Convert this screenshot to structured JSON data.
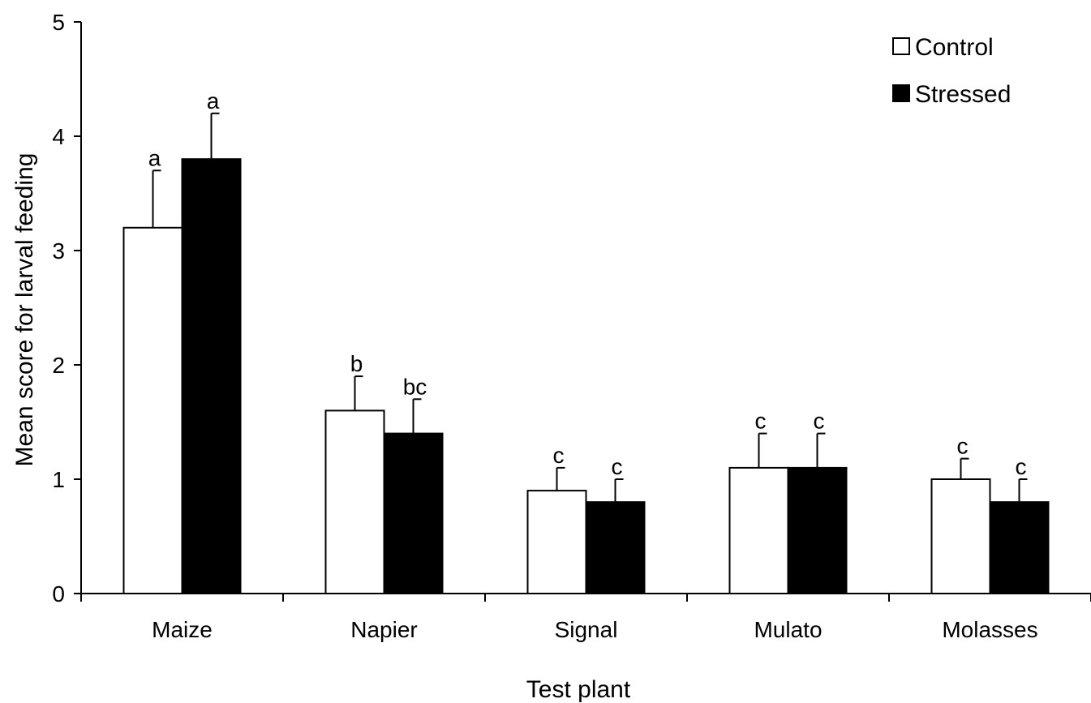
{
  "chart_data": {
    "type": "bar",
    "title": "",
    "xlabel": "Test plant",
    "ylabel": "Mean score for larval feeding",
    "categories": [
      "Maize",
      "Napier",
      "Signal",
      "Mulato",
      "Molasses"
    ],
    "ylim": [
      0,
      5
    ],
    "yticks": [
      "0",
      "1",
      "2",
      "3",
      "4",
      "5"
    ],
    "grid": false,
    "legend_position": "top-right",
    "series": [
      {
        "name": "Control",
        "color": "#ffffff",
        "values": [
          3.2,
          1.6,
          0.9,
          1.1,
          1.0
        ],
        "error": [
          0.5,
          0.3,
          0.2,
          0.3,
          0.18
        ],
        "sig_labels": [
          "a",
          "b",
          "c",
          "c",
          "c"
        ]
      },
      {
        "name": "Stressed",
        "color": "#000000",
        "values": [
          3.8,
          1.4,
          0.8,
          1.1,
          0.8
        ],
        "error": [
          0.4,
          0.3,
          0.2,
          0.3,
          0.2
        ],
        "sig_labels": [
          "a",
          "bc",
          "c",
          "c",
          "c"
        ]
      }
    ]
  }
}
